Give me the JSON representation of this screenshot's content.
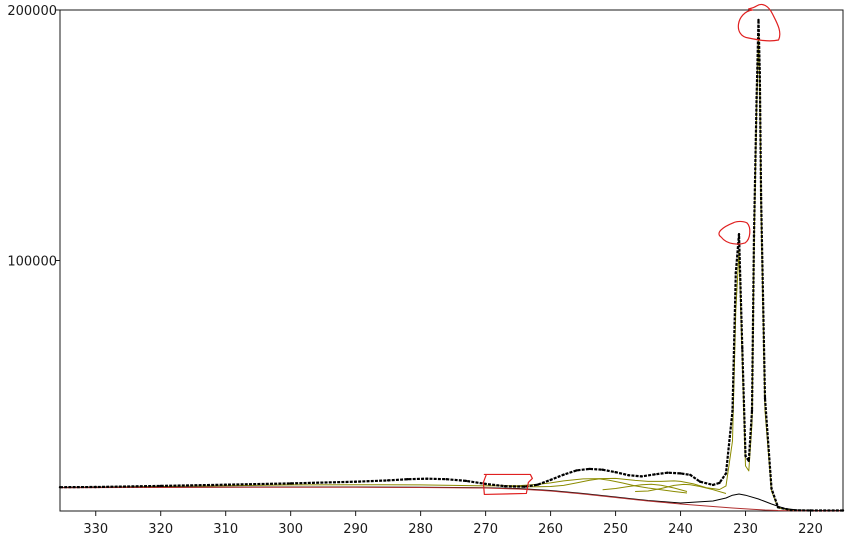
{
  "chart_data": {
    "type": "line",
    "title": "",
    "xlabel": "",
    "ylabel": "",
    "x_reversed": true,
    "xlim": [
      335.5,
      215
    ],
    "ylim": [
      0,
      200000
    ],
    "x_ticks": [
      330,
      320,
      310,
      300,
      290,
      280,
      270,
      260,
      250,
      240,
      230,
      220
    ],
    "y_ticks": [
      100000,
      200000
    ],
    "grid": false,
    "series": [
      {
        "style": "dots",
        "color": "#000000",
        "x": [
          335.5,
          330,
          320,
          310,
          300,
          290,
          285,
          282,
          279,
          276,
          273,
          270,
          267,
          264,
          262,
          260,
          258,
          256,
          254,
          252,
          250,
          248,
          246,
          244,
          242,
          240,
          238.5,
          237,
          235,
          234,
          233,
          232,
          231.5,
          231,
          230.5,
          230,
          229.5,
          229,
          228.7,
          228.3,
          228,
          227.8,
          227.6,
          227,
          226,
          225,
          223,
          220,
          215
        ],
        "y": [
          9500,
          9600,
          10000,
          10500,
          11000,
          11700,
          12200,
          12700,
          12900,
          12700,
          12000,
          10800,
          9900,
          9700,
          10500,
          12400,
          14500,
          16200,
          16800,
          16500,
          15500,
          14300,
          13800,
          14600,
          15300,
          15000,
          14400,
          11700,
          10400,
          11200,
          15000,
          40000,
          95000,
          110500,
          65000,
          22000,
          20000,
          40000,
          110000,
          165000,
          196000,
          175000,
          125000,
          45000,
          9000,
          1500,
          300,
          200,
          200
        ]
      },
      {
        "style": "line",
        "color": "#8b8b00",
        "x": [
          335.5,
          330,
          320,
          310,
          300,
          290,
          280,
          270,
          265,
          262,
          260,
          258,
          255,
          250,
          247,
          245,
          243,
          241,
          240,
          238,
          236,
          234,
          233,
          232,
          231.5,
          231,
          230.5,
          230,
          229.5,
          229,
          228.7,
          228.3,
          228,
          227.8,
          227.6,
          227,
          226,
          225,
          223,
          220,
          215
        ],
        "y": [
          9400,
          9500,
          9800,
          10100,
          10400,
          10500,
          10400,
          10000,
          10100,
          10600,
          11200,
          12000,
          12800,
          13000,
          12200,
          11800,
          11800,
          12000,
          11800,
          10800,
          9300,
          8600,
          10000,
          28000,
          80000,
          104000,
          60000,
          18000,
          16000,
          35000,
          104000,
          160000,
          190000,
          170000,
          120000,
          40000,
          8000,
          1200,
          300,
          200,
          200
        ]
      },
      {
        "style": "line",
        "color": "#8b8b00",
        "x": [
          266,
          264,
          262,
          260,
          258,
          256,
          254,
          252.5,
          251,
          249,
          247,
          245,
          243,
          241,
          239
        ],
        "y": [
          9800,
          9700,
          9700,
          9800,
          10200,
          11200,
          12300,
          12800,
          12300,
          11200,
          10000,
          9200,
          8500,
          7800,
          7200
        ]
      },
      {
        "style": "line",
        "color": "#8b8b00",
        "x": [
          252,
          250,
          248,
          246,
          244.5,
          243,
          241,
          239
        ],
        "y": [
          8500,
          9000,
          9800,
          10500,
          10700,
          10300,
          9200,
          7800
        ]
      },
      {
        "style": "line",
        "color": "#8b8b00",
        "x": [
          247,
          245,
          243,
          241,
          239.5,
          238.5,
          237,
          235,
          233
        ],
        "y": [
          7800,
          8000,
          9000,
          10200,
          10600,
          10500,
          9800,
          8500,
          7000
        ]
      },
      {
        "style": "line",
        "color": "#000000",
        "x": [
          335.5,
          330,
          320,
          310,
          300,
          290,
          280,
          270,
          265,
          260,
          255,
          250,
          245,
          240,
          235,
          233,
          232,
          231,
          230,
          228,
          226,
          224,
          222,
          220,
          215
        ],
        "y": [
          9400,
          9450,
          9500,
          9550,
          9600,
          9600,
          9500,
          9300,
          9000,
          8200,
          7000,
          5600,
          4200,
          3200,
          4000,
          5200,
          6300,
          6800,
          6300,
          4800,
          2800,
          1000,
          400,
          200,
          200
        ]
      },
      {
        "style": "line",
        "color": "#b03030",
        "x": [
          335.5,
          330,
          320,
          310,
          300,
          290,
          280,
          270,
          265,
          260,
          255,
          250,
          245,
          240,
          235,
          232,
          229,
          227,
          225,
          223,
          221,
          218,
          215
        ],
        "y": [
          9300,
          9350,
          9400,
          9450,
          9500,
          9500,
          9400,
          9200,
          8800,
          8000,
          6800,
          5400,
          4000,
          2800,
          1800,
          1200,
          700,
          400,
          200,
          100,
          50,
          0,
          0
        ]
      }
    ],
    "annotations": [
      {
        "shape": "freehand-circle",
        "color": "#e02020",
        "x": 228,
        "y": 196000
      },
      {
        "shape": "freehand-circle",
        "color": "#e02020",
        "x": 231,
        "y": 111000
      },
      {
        "shape": "freehand-box",
        "color": "#e02020",
        "x": 266.5,
        "y": 9800
      }
    ]
  }
}
